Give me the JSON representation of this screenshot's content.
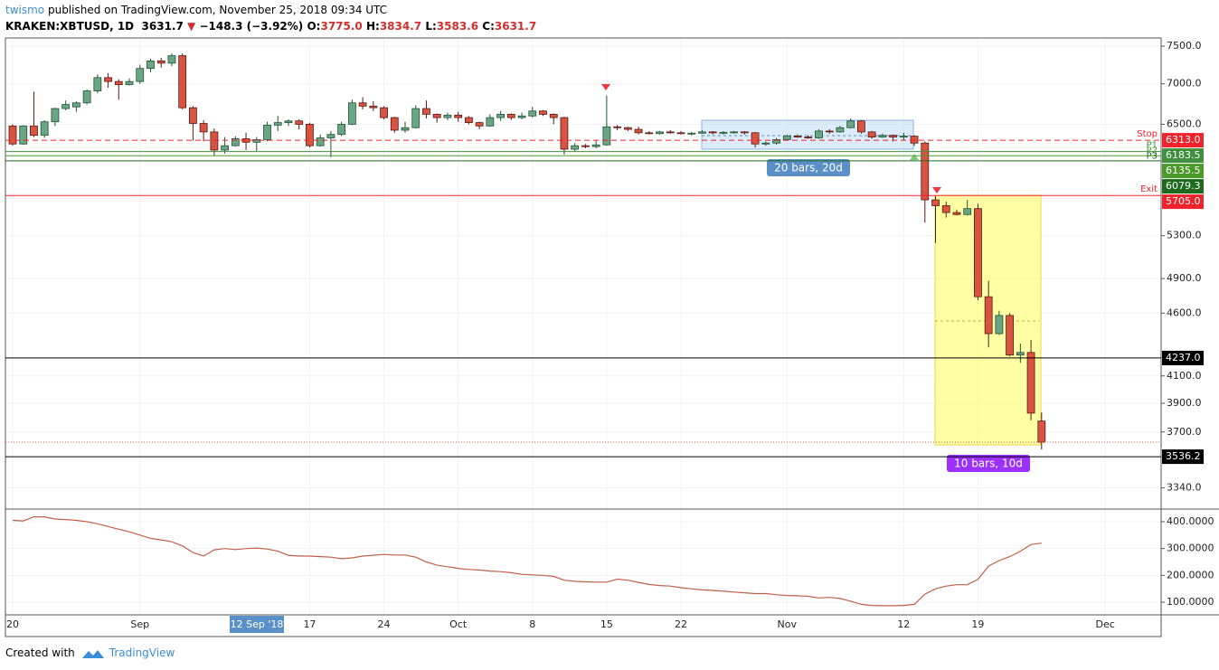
{
  "header": {
    "author": "twismo",
    "published": "published on TradingView.com, November 25, 2018 09:34 UTC",
    "symbol": "KRAKEN:XBTUSD, 1D",
    "last": "3631.7",
    "arrow": "▼",
    "change": "−148.3 (−3.92%)",
    "o_label": "O:",
    "o": "3775.0",
    "h_label": "H:",
    "h": "3834.7",
    "l_label": "L:",
    "l": "3583.6",
    "c_label": "C:",
    "c": "3631.7"
  },
  "annotations": {
    "box1": "20 bars, 20d",
    "box2": "10 bars, 10d",
    "crosshair": "12 Sep '18"
  },
  "x_ticks": [
    {
      "value": "2018-08-20",
      "label": "20"
    },
    {
      "value": "2018-09-01",
      "label": "Sep"
    },
    {
      "value": "2018-09-17",
      "label": "17"
    },
    {
      "value": "2018-09-24",
      "label": "24"
    },
    {
      "value": "2018-10-01",
      "label": "Oct"
    },
    {
      "value": "2018-10-08",
      "label": "8"
    },
    {
      "value": "2018-10-15",
      "label": "15"
    },
    {
      "value": "2018-10-22",
      "label": "22"
    },
    {
      "value": "2018-11-01",
      "label": "Nov"
    },
    {
      "value": "2018-11-12",
      "label": "12"
    },
    {
      "value": "2018-11-19",
      "label": "19"
    },
    {
      "value": "2018-12-01",
      "label": "Dec"
    }
  ],
  "chart_data": [
    {
      "type": "candlestick",
      "log_scale": true,
      "grid": true,
      "up_color": "#6ba583",
      "down_color": "#d75442",
      "up_border": "#225437",
      "down_border": "#5b1a13",
      "x": [
        "2018-08-20",
        "2018-08-21",
        "2018-08-22",
        "2018-08-23",
        "2018-08-24",
        "2018-08-25",
        "2018-08-26",
        "2018-08-27",
        "2018-08-28",
        "2018-08-29",
        "2018-08-30",
        "2018-08-31",
        "2018-09-01",
        "2018-09-02",
        "2018-09-03",
        "2018-09-04",
        "2018-09-05",
        "2018-09-06",
        "2018-09-07",
        "2018-09-08",
        "2018-09-09",
        "2018-09-10",
        "2018-09-11",
        "2018-09-12",
        "2018-09-13",
        "2018-09-14",
        "2018-09-15",
        "2018-09-16",
        "2018-09-17",
        "2018-09-18",
        "2018-09-19",
        "2018-09-20",
        "2018-09-21",
        "2018-09-22",
        "2018-09-23",
        "2018-09-24",
        "2018-09-25",
        "2018-09-26",
        "2018-09-27",
        "2018-09-28",
        "2018-09-29",
        "2018-09-30",
        "2018-10-01",
        "2018-10-02",
        "2018-10-03",
        "2018-10-04",
        "2018-10-05",
        "2018-10-06",
        "2018-10-07",
        "2018-10-08",
        "2018-10-09",
        "2018-10-10",
        "2018-10-11",
        "2018-10-12",
        "2018-10-13",
        "2018-10-14",
        "2018-10-15",
        "2018-10-16",
        "2018-10-17",
        "2018-10-18",
        "2018-10-19",
        "2018-10-20",
        "2018-10-21",
        "2018-10-22",
        "2018-10-23",
        "2018-10-24",
        "2018-10-25",
        "2018-10-26",
        "2018-10-27",
        "2018-10-28",
        "2018-10-29",
        "2018-10-30",
        "2018-10-31",
        "2018-11-01",
        "2018-11-02",
        "2018-11-03",
        "2018-11-04",
        "2018-11-05",
        "2018-11-06",
        "2018-11-07",
        "2018-11-08",
        "2018-11-09",
        "2018-11-10",
        "2018-11-11",
        "2018-11-12",
        "2018-11-13",
        "2018-11-14",
        "2018-11-15",
        "2018-11-16",
        "2018-11-17",
        "2018-11-18",
        "2018-11-19",
        "2018-11-20",
        "2018-11-21",
        "2018-11-22",
        "2018-11-23",
        "2018-11-24",
        "2018-11-25"
      ],
      "open": [
        6480,
        6270,
        6480,
        6370,
        6530,
        6690,
        6710,
        6760,
        6910,
        7080,
        7030,
        6990,
        7030,
        7200,
        7300,
        7270,
        7370,
        6700,
        6510,
        6410,
        6200,
        6250,
        6330,
        6290,
        6320,
        6490,
        6520,
        6540,
        6500,
        6250,
        6340,
        6380,
        6500,
        6760,
        6720,
        6700,
        6580,
        6430,
        6460,
        6690,
        6620,
        6580,
        6610,
        6580,
        6520,
        6480,
        6580,
        6620,
        6580,
        6600,
        6660,
        6620,
        6580,
        6210,
        6250,
        6240,
        6260,
        6470,
        6460,
        6440,
        6400,
        6390,
        6410,
        6400,
        6390,
        6395,
        6410,
        6400,
        6405,
        6410,
        6400,
        6270,
        6280,
        6320,
        6360,
        6350,
        6340,
        6420,
        6410,
        6460,
        6540,
        6410,
        6350,
        6370,
        6350,
        6360,
        6280,
        5660,
        5600,
        5530,
        5510,
        5570,
        4740,
        4430,
        4580,
        4260,
        4280,
        3775
      ],
      "high": [
        6500,
        6490,
        6900,
        6550,
        6700,
        6790,
        6780,
        6930,
        7120,
        7140,
        7060,
        7070,
        7250,
        7330,
        7340,
        7400,
        7400,
        6720,
        6550,
        6450,
        6350,
        6360,
        6400,
        6350,
        6530,
        6600,
        6560,
        6560,
        6520,
        6380,
        6420,
        6530,
        6800,
        6830,
        6780,
        6720,
        6590,
        6530,
        6730,
        6790,
        6630,
        6640,
        6650,
        6600,
        6530,
        6620,
        6660,
        6630,
        6640,
        6710,
        6670,
        6630,
        6590,
        6280,
        6270,
        6310,
        6850,
        6490,
        6470,
        6470,
        6420,
        6420,
        6430,
        6420,
        6410,
        6430,
        6420,
        6420,
        6420,
        6420,
        6410,
        6300,
        6340,
        6380,
        6380,
        6370,
        6440,
        6440,
        6480,
        6570,
        6550,
        6420,
        6390,
        6380,
        6400,
        6370,
        6300,
        5700,
        5640,
        5560,
        5660,
        5620,
        4880,
        4620,
        4600,
        4350,
        4380,
        3834.7
      ],
      "low": [
        6250,
        6260,
        6350,
        6340,
        6480,
        6670,
        6650,
        6740,
        6880,
        6950,
        6800,
        6980,
        7000,
        7150,
        7210,
        7230,
        6680,
        6310,
        6300,
        6140,
        6160,
        6240,
        6200,
        6190,
        6300,
        6420,
        6480,
        6440,
        6230,
        6240,
        6120,
        6360,
        6490,
        6680,
        6660,
        6560,
        6400,
        6400,
        6450,
        6570,
        6520,
        6550,
        6530,
        6500,
        6440,
        6470,
        6540,
        6550,
        6560,
        6580,
        6600,
        6500,
        6150,
        6180,
        6220,
        6220,
        6250,
        6430,
        6420,
        6380,
        6380,
        6380,
        6390,
        6380,
        6370,
        6390,
        6380,
        6380,
        6390,
        6380,
        6230,
        6250,
        6260,
        6310,
        6340,
        6330,
        6330,
        6390,
        6400,
        6450,
        6390,
        6330,
        6340,
        6300,
        6310,
        6250,
        5430,
        5230,
        5480,
        5500,
        5500,
        4710,
        4320,
        4420,
        4250,
        4200,
        3780,
        3583.6
      ],
      "close": [
        6270,
        6480,
        6370,
        6530,
        6690,
        6740,
        6760,
        6910,
        7080,
        7030,
        6990,
        7030,
        7200,
        7300,
        7270,
        7370,
        6700,
        6510,
        6410,
        6200,
        6250,
        6330,
        6290,
        6320,
        6490,
        6520,
        6540,
        6500,
        6250,
        6340,
        6380,
        6500,
        6760,
        6720,
        6700,
        6580,
        6430,
        6460,
        6690,
        6620,
        6580,
        6610,
        6580,
        6520,
        6480,
        6580,
        6620,
        6580,
        6600,
        6660,
        6620,
        6580,
        6210,
        6250,
        6240,
        6260,
        6470,
        6460,
        6440,
        6400,
        6390,
        6410,
        6400,
        6390,
        6395,
        6410,
        6400,
        6405,
        6410,
        6400,
        6270,
        6280,
        6320,
        6360,
        6350,
        6340,
        6420,
        6410,
        6460,
        6540,
        6410,
        6350,
        6370,
        6350,
        6360,
        6280,
        5660,
        5600,
        5530,
        5510,
        5570,
        4740,
        4430,
        4580,
        4260,
        4280,
        3830,
        3631.7
      ],
      "ylim": [
        3213,
        7613
      ],
      "yticks": [
        {
          "value": 7500,
          "label": "7500.0"
        },
        {
          "value": 7000,
          "label": "7000.0"
        },
        {
          "value": 6500,
          "label": "6500.0"
        },
        {
          "value": 5300,
          "label": "5300.0"
        },
        {
          "value": 4900,
          "label": "4900.0"
        },
        {
          "value": 4600,
          "label": "4600.0"
        },
        {
          "value": 4100,
          "label": "4100.0"
        },
        {
          "value": 3900,
          "label": "3900.0"
        },
        {
          "value": 3700,
          "label": "3700.0"
        },
        {
          "value": 3340,
          "label": "3340.0"
        }
      ],
      "price_lines": [
        {
          "value": 6313,
          "label": "6313.0",
          "tag": "Stop",
          "color": "#f0232d",
          "dash": "6 4"
        },
        {
          "value": 6183.5,
          "label": "6183.5",
          "tag": "P1",
          "color": "#3f8f3f",
          "dash": "none"
        },
        {
          "value": 6135.5,
          "label": "6135.5",
          "tag": "P2",
          "color": "#4c9a2a",
          "dash": "none"
        },
        {
          "value": 6079.3,
          "label": "6079.3",
          "tag": "P3",
          "color": "#1e6b1e",
          "dash": "none"
        },
        {
          "value": 5705,
          "label": "5705.0",
          "tag": "Exit",
          "color": "#f0232d",
          "dash": "none"
        },
        {
          "value": 4237,
          "label": "4237.0",
          "color": "#000000",
          "dash": "none"
        },
        {
          "value": 3536.2,
          "label": "3536.2",
          "color": "#000000",
          "dash": "none"
        }
      ]
    },
    {
      "type": "line",
      "color": "#c0604a",
      "x": [
        "2018-08-20",
        "2018-08-21",
        "2018-08-22",
        "2018-08-23",
        "2018-08-24",
        "2018-08-25",
        "2018-08-26",
        "2018-08-27",
        "2018-08-28",
        "2018-08-29",
        "2018-08-30",
        "2018-08-31",
        "2018-09-01",
        "2018-09-02",
        "2018-09-03",
        "2018-09-04",
        "2018-09-05",
        "2018-09-06",
        "2018-09-07",
        "2018-09-08",
        "2018-09-09",
        "2018-09-10",
        "2018-09-11",
        "2018-09-12",
        "2018-09-13",
        "2018-09-14",
        "2018-09-15",
        "2018-09-16",
        "2018-09-17",
        "2018-09-18",
        "2018-09-19",
        "2018-09-20",
        "2018-09-21",
        "2018-09-22",
        "2018-09-23",
        "2018-09-24",
        "2018-09-25",
        "2018-09-26",
        "2018-09-27",
        "2018-09-28",
        "2018-09-29",
        "2018-09-30",
        "2018-10-01",
        "2018-10-02",
        "2018-10-03",
        "2018-10-04",
        "2018-10-05",
        "2018-10-06",
        "2018-10-07",
        "2018-10-08",
        "2018-10-09",
        "2018-10-10",
        "2018-10-11",
        "2018-10-12",
        "2018-10-13",
        "2018-10-14",
        "2018-10-15",
        "2018-10-16",
        "2018-10-17",
        "2018-10-18",
        "2018-10-19",
        "2018-10-20",
        "2018-10-21",
        "2018-10-22",
        "2018-10-23",
        "2018-10-24",
        "2018-10-25",
        "2018-10-26",
        "2018-10-27",
        "2018-10-28",
        "2018-10-29",
        "2018-10-30",
        "2018-10-31",
        "2018-11-01",
        "2018-11-02",
        "2018-11-03",
        "2018-11-04",
        "2018-11-05",
        "2018-11-06",
        "2018-11-07",
        "2018-11-08",
        "2018-11-09",
        "2018-11-10",
        "2018-11-11",
        "2018-11-12",
        "2018-11-13",
        "2018-11-14",
        "2018-11-15",
        "2018-11-16",
        "2018-11-17",
        "2018-11-18",
        "2018-11-19",
        "2018-11-20",
        "2018-11-21",
        "2018-11-22",
        "2018-11-23",
        "2018-11-24",
        "2018-11-25"
      ],
      "values": [
        405,
        403,
        418,
        418,
        410,
        408,
        405,
        400,
        392,
        382,
        372,
        362,
        350,
        338,
        332,
        325,
        310,
        285,
        272,
        295,
        300,
        296,
        300,
        302,
        298,
        290,
        275,
        272,
        272,
        270,
        268,
        262,
        265,
        272,
        275,
        278,
        276,
        276,
        268,
        250,
        238,
        232,
        226,
        222,
        220,
        216,
        214,
        210,
        204,
        202,
        200,
        196,
        182,
        178,
        176,
        175,
        175,
        186,
        182,
        174,
        166,
        162,
        160,
        154,
        150,
        146,
        144,
        141,
        138,
        135,
        132,
        132,
        128,
        125,
        124,
        122,
        116,
        118,
        114,
        104,
        92,
        88,
        87,
        87,
        88,
        92,
        130,
        150,
        160,
        165,
        165,
        185,
        235,
        255,
        270,
        290,
        315,
        320
      ],
      "ylim": [
        53,
        447
      ],
      "yticks": [
        {
          "value": 400,
          "label": "400.0000"
        },
        {
          "value": 300,
          "label": "300.0000"
        },
        {
          "value": 200,
          "label": "200.0000"
        },
        {
          "value": 100,
          "label": "100.0000"
        }
      ]
    }
  ],
  "footer": {
    "created": "Created with",
    "brand": "TradingView"
  }
}
